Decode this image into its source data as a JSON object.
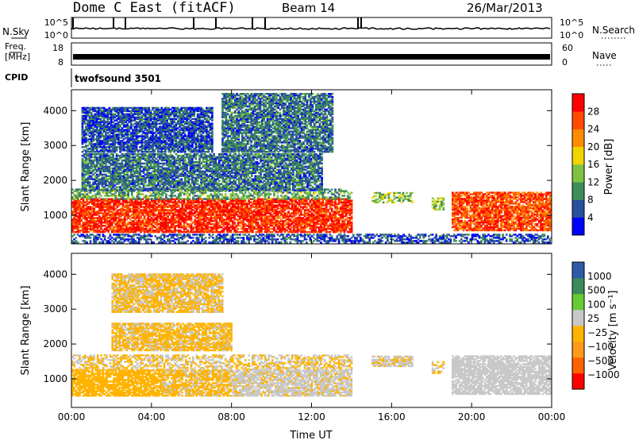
{
  "header": {
    "site": "Dome C East (fitACF)",
    "beam": "Beam 14",
    "date": "26/Mar/2013"
  },
  "sky_panel": {
    "left_label": "N.Sky",
    "right_label": "N.Search",
    "ticks": [
      "10^5",
      "10^0"
    ]
  },
  "freq_panel": {
    "left_label_1": "Freq.",
    "left_label_2": "[MHz]",
    "right_label": "Nave",
    "left_ticks": [
      "18",
      "8"
    ],
    "right_ticks": [
      "60",
      "0"
    ]
  },
  "cpid": {
    "label": "CPID",
    "value": "twofsound 3501"
  },
  "colors": {
    "power_scale": [
      "#0000ff",
      "#2a4f9e",
      "#3f8d5a",
      "#7fc241",
      "#f2d400",
      "#ff8c00",
      "#ff4a00",
      "#ff0000"
    ],
    "velocity_scale": [
      "#ff0000",
      "#ff6000",
      "#ff9a1a",
      "#ffb300",
      "#c8c8c8",
      "#66cc33",
      "#3a8a5a",
      "#2e5aa8"
    ]
  },
  "chart_data": [
    {
      "type": "heatmap",
      "name": "power",
      "ylabel": "Slant Range [km]",
      "xlabel": "",
      "x_ticks": [
        "00:00",
        "04:00",
        "08:00",
        "12:00",
        "16:00",
        "20:00",
        "00:00"
      ],
      "x_range_hours": [
        0,
        24
      ],
      "y_ticks": [
        1000,
        2000,
        3000,
        4000
      ],
      "ylim": [
        180,
        4600
      ],
      "colorbar": {
        "label": "Power [dB]",
        "ticks": [
          "28",
          "24",
          "20",
          "16",
          "12",
          "8",
          "4"
        ],
        "range": [
          0,
          32
        ]
      },
      "regions": [
        {
          "t0": 0.0,
          "t1": 14.0,
          "r0": 500,
          "r1": 1450,
          "level": 28
        },
        {
          "t0": 0.0,
          "t1": 14.0,
          "r0": 1450,
          "r1": 1750,
          "level": 12
        },
        {
          "t0": 0.5,
          "t1": 12.5,
          "r0": 1700,
          "r1": 2750,
          "level": 8
        },
        {
          "t0": 0.5,
          "t1": 7.0,
          "r0": 2800,
          "r1": 4100,
          "level": 6
        },
        {
          "t0": 7.5,
          "t1": 13.0,
          "r0": 2800,
          "r1": 4500,
          "level": 8
        },
        {
          "t0": 15.0,
          "t1": 17.0,
          "r0": 1350,
          "r1": 1650,
          "level": 14
        },
        {
          "t0": 18.0,
          "t1": 18.6,
          "r0": 1150,
          "r1": 1500,
          "level": 14
        },
        {
          "t0": 19.0,
          "t1": 24.0,
          "r0": 550,
          "r1": 1650,
          "level": 26
        },
        {
          "t0": 0.0,
          "t1": 24.0,
          "r0": 200,
          "r1": 450,
          "level": 6
        }
      ]
    },
    {
      "type": "heatmap",
      "name": "velocity",
      "ylabel": "Slant Range [km]",
      "xlabel": "Time UT",
      "x_ticks": [
        "00:00",
        "04:00",
        "08:00",
        "12:00",
        "16:00",
        "20:00",
        "00:00"
      ],
      "x_range_hours": [
        0,
        24
      ],
      "y_ticks": [
        1000,
        2000,
        3000,
        4000
      ],
      "ylim": [
        180,
        4600
      ],
      "colorbar": {
        "label": "Velocity [m s⁻¹]",
        "ticks": [
          "1000",
          "500",
          "100",
          "25",
          "−25",
          "−100",
          "−500",
          "−1000"
        ],
        "range": [
          -1200,
          1200
        ]
      },
      "regions": [
        {
          "t0": 0.0,
          "t1": 14.0,
          "r0": 1250,
          "r1": 1700,
          "level": 0
        },
        {
          "t0": 0.0,
          "t1": 4.5,
          "r0": 500,
          "r1": 1250,
          "level": -150
        },
        {
          "t0": 4.5,
          "t1": 8.0,
          "r0": 500,
          "r1": 1250,
          "level": -60
        },
        {
          "t0": 8.0,
          "t1": 14.0,
          "r0": 500,
          "r1": 1250,
          "level": 80
        },
        {
          "t0": 2.0,
          "t1": 8.0,
          "r0": 1800,
          "r1": 2600,
          "level": -60
        },
        {
          "t0": 2.0,
          "t1": 7.5,
          "r0": 2900,
          "r1": 4000,
          "level": -40
        },
        {
          "t0": 15.0,
          "t1": 17.0,
          "r0": 1350,
          "r1": 1650,
          "level": 60
        },
        {
          "t0": 18.0,
          "t1": 18.6,
          "r0": 1150,
          "r1": 1500,
          "level": 20
        },
        {
          "t0": 19.0,
          "t1": 24.0,
          "r0": 550,
          "r1": 1650,
          "level": 150
        }
      ]
    }
  ]
}
